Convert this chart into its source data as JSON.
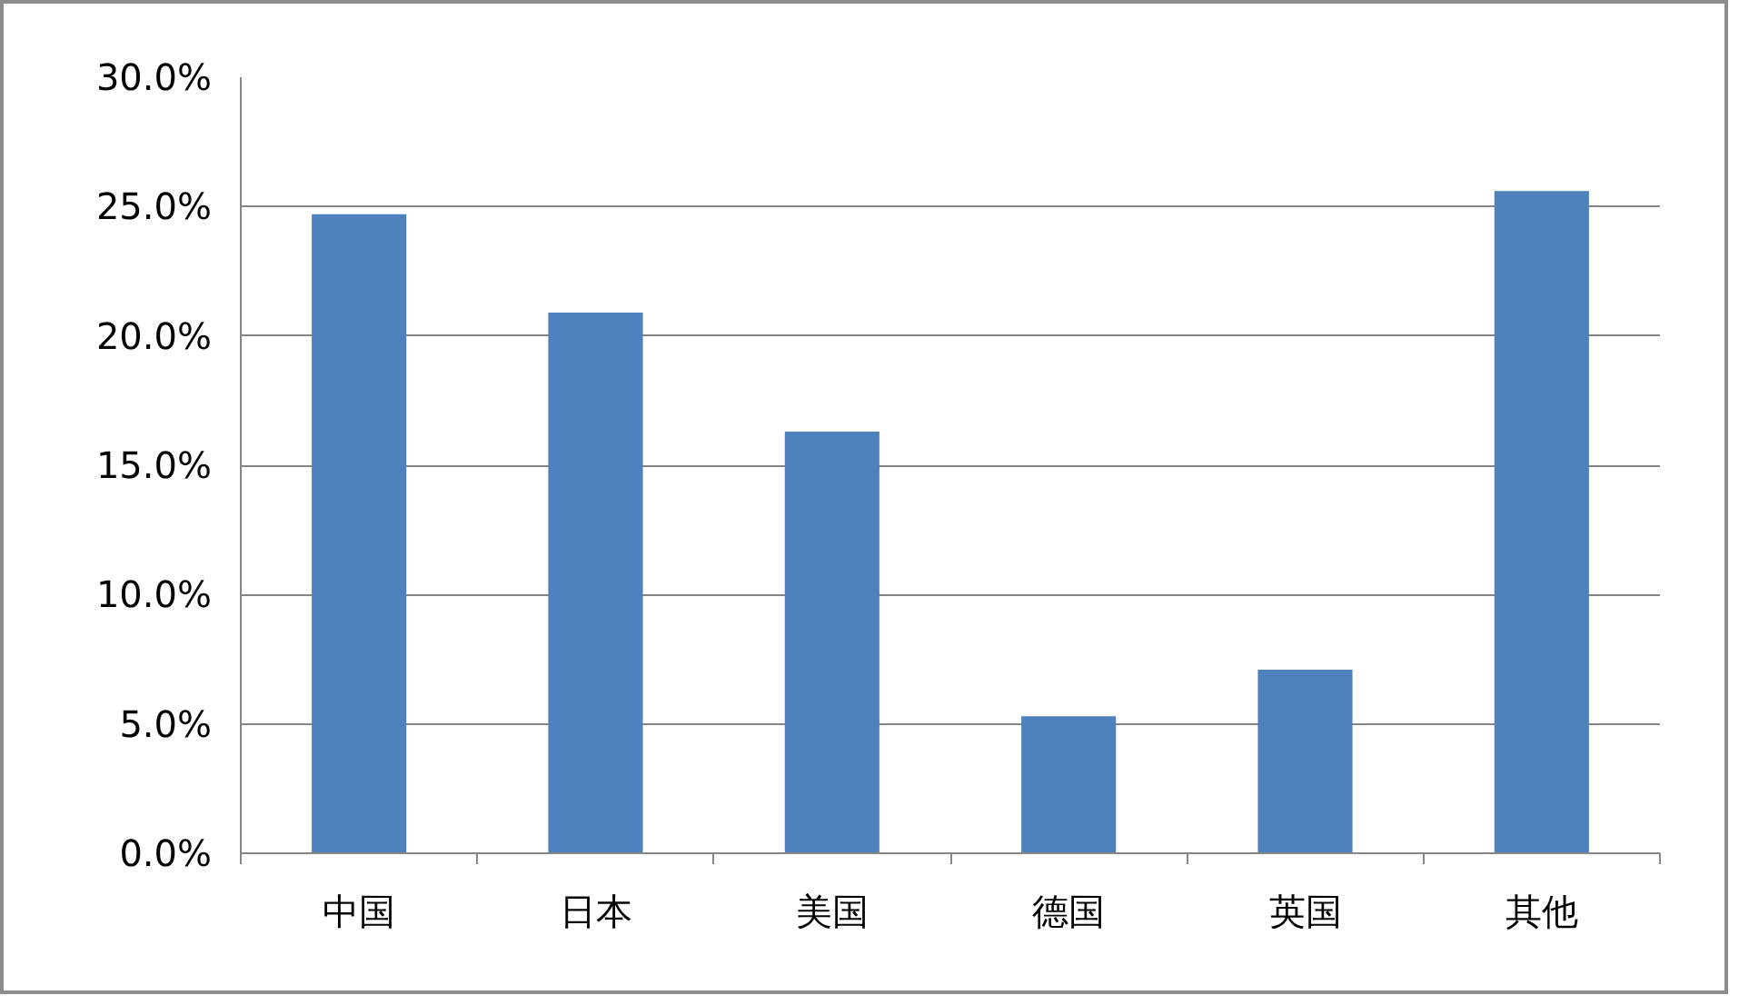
{
  "chart_data": {
    "type": "bar",
    "categories": [
      "中国",
      "日本",
      "美国",
      "德国",
      "英国",
      "其他"
    ],
    "values": [
      24.7,
      20.9,
      16.3,
      5.3,
      7.1,
      25.6
    ],
    "color": "#4f81bd",
    "ylim": [
      0,
      30
    ],
    "yticks": [
      {
        "value": 0,
        "label": "0.0%"
      },
      {
        "value": 5,
        "label": "5.0%"
      },
      {
        "value": 10,
        "label": "10.0%"
      },
      {
        "value": 15,
        "label": "15.0%"
      },
      {
        "value": 20,
        "label": "20.0%"
      },
      {
        "value": 25,
        "label": "25.0%"
      },
      {
        "value": 30,
        "label": "30.0%"
      }
    ],
    "grid": "y"
  }
}
